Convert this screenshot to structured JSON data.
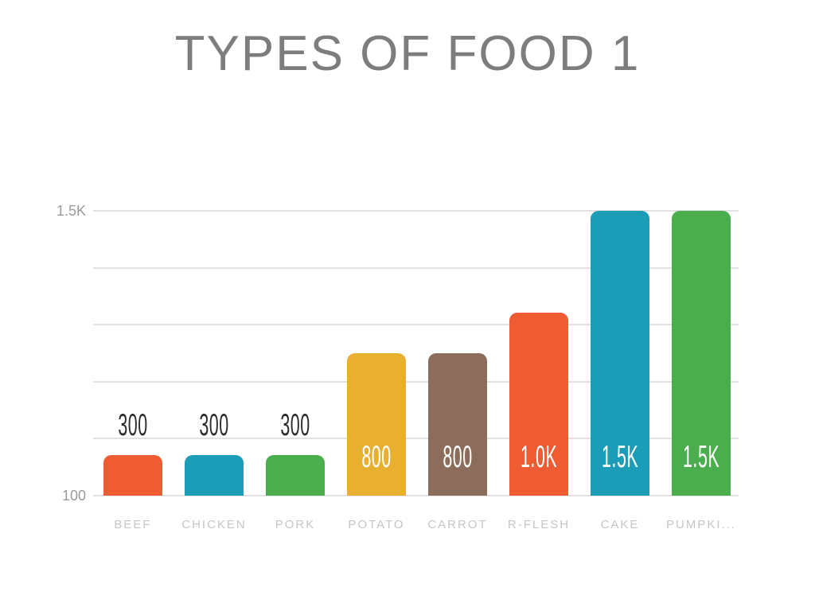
{
  "title": {
    "text": "TYPES OF FOOD 1",
    "color": "#7d7d7d"
  },
  "chart_data": {
    "type": "bar",
    "title": "TYPES OF FOOD 1",
    "categories": [
      "BEEF",
      "CHICKEN",
      "PORK",
      "POTATO",
      "CARROT",
      "R-FLESH",
      "CAKE",
      "PUMPKI..."
    ],
    "values": [
      300,
      300,
      300,
      800,
      800,
      1000,
      1500,
      1500
    ],
    "value_labels": [
      "300",
      "300",
      "300",
      "800",
      "800",
      "1.0K",
      "1.5K",
      "1.5K"
    ],
    "bar_colors": [
      "#EF5B33",
      "#1B9DB8",
      "#4AAD4E",
      "#E9B02F",
      "#8C6D5B",
      "#EF5B33",
      "#1B9DB8",
      "#4AAD4E"
    ],
    "xlabel": "",
    "ylabel": "",
    "ylim": [
      100,
      1500
    ],
    "y_tick_labels_shown": {
      "top": "1.5K",
      "bottom": "100"
    },
    "gridline_count": 6,
    "grid": "horizontal",
    "legend": "none"
  },
  "colors": {
    "grid": "#e1e1e1",
    "y_axis_label": "#9b9b9b",
    "category_label": "#c6c6c6",
    "value_label_dark": "#2b2b2b",
    "value_label_light": "#ffffff",
    "background": "#ffffff"
  }
}
